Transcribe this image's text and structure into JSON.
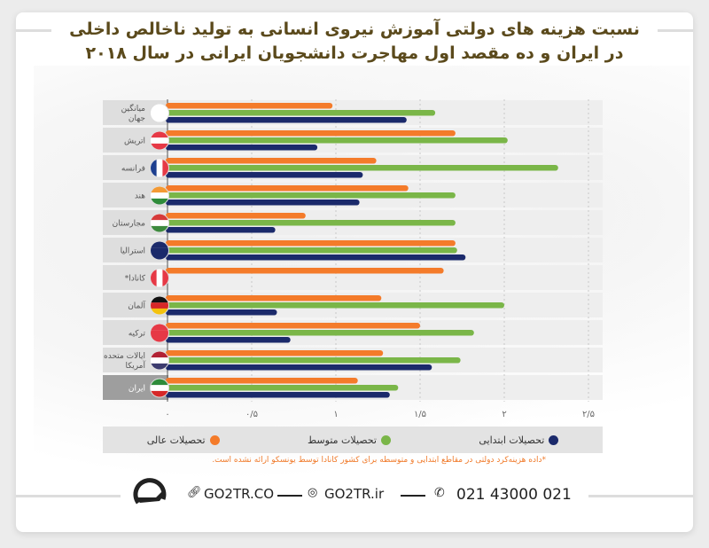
{
  "title": {
    "line1": "نسبت هزینه های دولتی آموزش نیروی انسانی به تولید ناخالص داخلی",
    "line2": "در ایران و ده مقصد اول مهاجرت دانشجویان ایرانی در سال ۲۰۱۸"
  },
  "colors": {
    "higher": "#f47b2a",
    "secondary": "#7ab648",
    "primary": "#1b2a6b",
    "title": "#5b4a1c"
  },
  "chart_data": {
    "type": "bar",
    "orientation": "horizontal",
    "categories": [
      "میانگین جهان",
      "اتریش",
      "فرانسه",
      "هند",
      "مجارستان",
      "استرالیا",
      "*کانادا",
      "آلمان",
      "ترکیه",
      "ایالات متحده آمریکا",
      "ایران"
    ],
    "category_lines": [
      [
        "میانگین",
        "جهان"
      ],
      [
        "اتریش"
      ],
      [
        "فرانسه"
      ],
      [
        "هند"
      ],
      [
        "مجارستان"
      ],
      [
        "استرالیا"
      ],
      [
        "*کانادا"
      ],
      [
        "آلمان"
      ],
      [
        "ترکیه"
      ],
      [
        "ایالات متحده",
        "آمریکا"
      ],
      [
        "ایران"
      ]
    ],
    "flags": [
      "globe",
      "austria",
      "france",
      "india",
      "hungary",
      "australia",
      "canada",
      "germany",
      "turkey",
      "usa",
      "iran"
    ],
    "highlight_category": "ایران",
    "series": [
      {
        "name": "تحصیلات عالی",
        "color": "#f47b2a",
        "values": [
          0.98,
          1.71,
          1.24,
          1.43,
          0.82,
          1.71,
          1.64,
          1.27,
          1.5,
          1.28,
          1.13
        ]
      },
      {
        "name": "تحصیلات متوسط",
        "color": "#7ab648",
        "values": [
          1.59,
          2.02,
          2.32,
          1.71,
          1.71,
          1.72,
          null,
          2.0,
          1.82,
          1.74,
          1.37
        ]
      },
      {
        "name": "تحصیلات ابتدایی",
        "color": "#1b2a6b",
        "values": [
          1.42,
          0.89,
          1.16,
          1.14,
          0.64,
          1.77,
          null,
          0.65,
          0.73,
          1.57,
          1.32
        ]
      }
    ],
    "xlim": [
      0,
      2.5
    ],
    "xticks": [
      0,
      0.5,
      1,
      1.5,
      2,
      2.5
    ],
    "xtick_labels": [
      "۰",
      "۰/۵",
      "۱",
      "۱/۵",
      "۲",
      "۲/۵"
    ],
    "grid": "vertical dotted",
    "legend_placement": "bottom",
    "legend": [
      "تحصیلات ابتدایی",
      "تحصیلات متوسط",
      "تحصیلات عالی"
    ],
    "note": "*داده هزینه‌کرد دولتی در مقاطع ابتدایی و متوسطه برای کشور کانادا توسط یونسکو ارائه نشده است."
  },
  "footer": {
    "website": "GO2TR.CO",
    "instagram": "GO2TR.ir",
    "phone": "021 43000 021"
  }
}
